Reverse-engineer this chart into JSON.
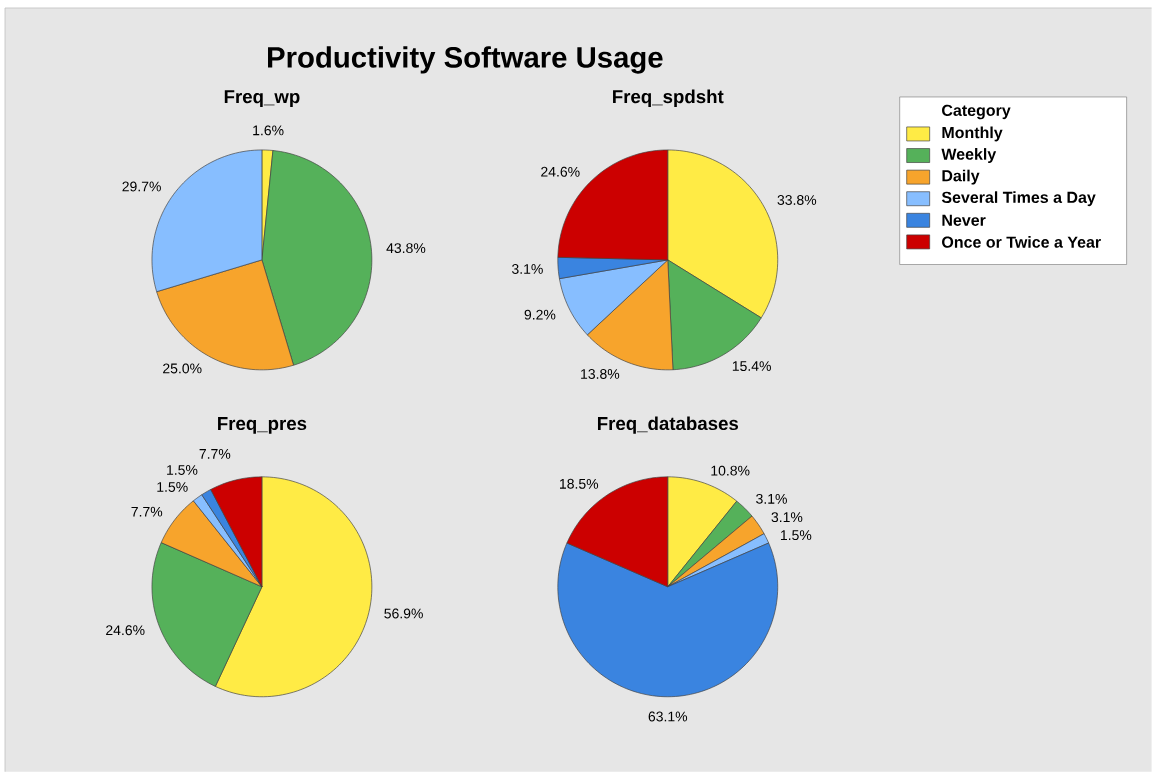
{
  "chart_data": [
    {
      "type": "pie",
      "title": "Productivity Software Usage",
      "subtitle": "Freq_wp",
      "values": [
        1.6,
        43.8,
        25.0,
        29.7
      ],
      "value_labels": [
        "1.6%",
        "43.8%",
        "25.0%",
        "29.7%"
      ],
      "colors": [
        "#ffeb45",
        "#55b15a",
        "#f7a42c",
        "#87beff"
      ]
    },
    {
      "type": "pie",
      "subtitle": "Freq_spdsht",
      "legend": "right",
      "legend_title": "Category",
      "categories": [
        "Monthly",
        "Weekly",
        "Daily",
        "Several Times a Day",
        "Never",
        "Once or Twice a Year"
      ],
      "values": [
        33.8,
        15.4,
        13.8,
        9.2,
        3.1,
        24.6
      ],
      "value_labels": [
        "33.8%",
        "15.4%",
        "13.8%",
        "9.2%",
        "3.1%",
        "24.6%"
      ],
      "colors": [
        "#ffeb45",
        "#55b15a",
        "#f7a42c",
        "#87beff",
        "#3a84e0",
        "#cc0000"
      ]
    },
    {
      "type": "pie",
      "subtitle": "Freq_pres",
      "values": [
        56.9,
        24.6,
        7.7,
        1.5,
        1.5,
        7.7
      ],
      "value_labels": [
        "56.9%",
        "24.6%",
        "7.7%",
        "1.5%",
        "1.5%",
        "7.7%"
      ],
      "colors": [
        "#ffeb45",
        "#55b15a",
        "#f7a42c",
        "#87beff",
        "#3a84e0",
        "#cc0000"
      ]
    },
    {
      "type": "pie",
      "subtitle": "Freq_databases",
      "values": [
        10.8,
        3.1,
        3.1,
        1.5,
        63.1,
        18.5
      ],
      "value_labels": [
        "10.8%",
        "3.1%",
        "3.1%",
        "1.5%",
        "63.1%",
        "18.5%"
      ],
      "colors": [
        "#ffeb45",
        "#55b15a",
        "#f7a42c",
        "#87beff",
        "#3a84e0",
        "#cc0000"
      ]
    }
  ]
}
